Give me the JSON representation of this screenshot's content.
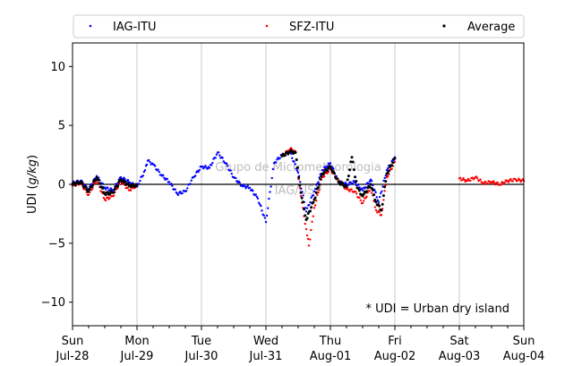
{
  "chart_data": {
    "type": "scatter",
    "ylabel": "UDI (g/kg)",
    "ylabel_plain": "UDI (",
    "ylabel_italic": "g/kg",
    "ylabel_close": ")",
    "ylim": [
      -12,
      12
    ],
    "yticks": [
      -10,
      -5,
      0,
      5,
      10
    ],
    "xlim": [
      "2025-07-28 00:00",
      "2025-08-04 00:00"
    ],
    "xticks": [
      {
        "x": "2025-07-28",
        "day": "Sun",
        "date": "Jul-28"
      },
      {
        "x": "2025-07-29",
        "day": "Mon",
        "date": "Jul-29"
      },
      {
        "x": "2025-07-30",
        "day": "Tue",
        "date": "Jul-30"
      },
      {
        "x": "2025-07-31",
        "day": "Wed",
        "date": "Jul-31"
      },
      {
        "x": "2025-08-01",
        "day": "Thu",
        "date": "Aug-01"
      },
      {
        "x": "2025-08-02",
        "day": "Fri",
        "date": "Aug-02"
      },
      {
        "x": "2025-08-03",
        "day": "Sat",
        "date": "Aug-03"
      },
      {
        "x": "2025-08-04",
        "day": "Sun",
        "date": "Aug-04"
      }
    ],
    "grid": "vertical",
    "legend_position": "top, spanning full width",
    "note": "* UDI = Urban dry island",
    "watermark": [
      "Grupo de Micrometeorologia",
      "IAG/USP"
    ],
    "series": [
      {
        "name": "IAG-ITU",
        "color": "#0000ff",
        "points": [
          [
            "2025-07-28 00:00",
            0.1
          ],
          [
            "2025-07-28 03:00",
            0.3
          ],
          [
            "2025-07-28 06:00",
            -0.4
          ],
          [
            "2025-07-28 09:00",
            0.7
          ],
          [
            "2025-07-28 12:00",
            -0.3
          ],
          [
            "2025-07-28 15:00",
            -0.5
          ],
          [
            "2025-07-28 18:00",
            0.6
          ],
          [
            "2025-07-28 21:00",
            0.2
          ],
          [
            "2025-07-29 00:00",
            -0.2
          ],
          [
            "2025-07-29 03:00",
            1.2
          ],
          [
            "2025-07-29 04:00",
            2.0
          ],
          [
            "2025-07-29 06:00",
            1.7
          ],
          [
            "2025-07-29 09:00",
            0.8
          ],
          [
            "2025-07-29 12:00",
            0.2
          ],
          [
            "2025-07-29 15:00",
            -0.8
          ],
          [
            "2025-07-29 18:00",
            -0.6
          ],
          [
            "2025-07-29 21:00",
            0.6
          ],
          [
            "2025-07-30 00:00",
            1.5
          ],
          [
            "2025-07-30 03:00",
            1.4
          ],
          [
            "2025-07-30 06:00",
            2.7
          ],
          [
            "2025-07-30 09:00",
            1.8
          ],
          [
            "2025-07-30 12:00",
            0.6
          ],
          [
            "2025-07-30 15:00",
            -0.1
          ],
          [
            "2025-07-30 18:00",
            -0.3
          ],
          [
            "2025-07-30 21:00",
            -1.2
          ],
          [
            "2025-07-31 00:00",
            -3.2
          ],
          [
            "2025-07-31 03:00",
            1.8
          ],
          [
            "2025-07-31 06:00",
            2.5
          ],
          [
            "2025-07-31 09:00",
            2.7
          ],
          [
            "2025-07-31 12:00",
            1.0
          ],
          [
            "2025-07-31 15:00",
            -2.3
          ],
          [
            "2025-07-31 18:00",
            -0.6
          ],
          [
            "2025-07-31 21:00",
            1.2
          ],
          [
            "2025-08-01 00:00",
            1.8
          ],
          [
            "2025-08-01 03:00",
            0.2
          ],
          [
            "2025-08-01 06:00",
            0.0
          ],
          [
            "2025-08-01 09:00",
            0.2
          ],
          [
            "2025-08-01 12:00",
            -0.5
          ],
          [
            "2025-08-01 15:00",
            0.4
          ],
          [
            "2025-08-01 18:00",
            -1.5
          ],
          [
            "2025-08-01 21:00",
            1.2
          ],
          [
            "2025-08-02 00:00",
            2.3
          ]
        ]
      },
      {
        "name": "SFZ-ITU",
        "color": "#ff0000",
        "points": [
          [
            "2025-07-28 00:00",
            -0.1
          ],
          [
            "2025-07-28 03:00",
            0.1
          ],
          [
            "2025-07-28 06:00",
            -0.9
          ],
          [
            "2025-07-28 09:00",
            0.4
          ],
          [
            "2025-07-28 12:00",
            -1.3
          ],
          [
            "2025-07-28 15:00",
            -1.0
          ],
          [
            "2025-07-28 18:00",
            0.3
          ],
          [
            "2025-07-28 21:00",
            -0.5
          ],
          [
            "2025-07-29 00:00",
            -0.1
          ],
          [
            "2025-07-31 06:00",
            2.4
          ],
          [
            "2025-07-31 09:00",
            3.0
          ],
          [
            "2025-07-31 11:00",
            2.8
          ],
          [
            "2025-07-31 13:00",
            -1.0
          ],
          [
            "2025-07-31 15:00",
            -3.8
          ],
          [
            "2025-07-31 16:00",
            -5.2
          ],
          [
            "2025-07-31 18:00",
            -2.0
          ],
          [
            "2025-07-31 21:00",
            0.6
          ],
          [
            "2025-08-01 00:00",
            1.3
          ],
          [
            "2025-08-01 03:00",
            0.3
          ],
          [
            "2025-08-01 06:00",
            -0.4
          ],
          [
            "2025-08-01 09:00",
            -0.6
          ],
          [
            "2025-08-01 12:00",
            -1.6
          ],
          [
            "2025-08-01 15:00",
            -0.3
          ],
          [
            "2025-08-01 17:00",
            -2.2
          ],
          [
            "2025-08-01 19:00",
            -2.6
          ],
          [
            "2025-08-01 21:00",
            0.6
          ],
          [
            "2025-08-02 00:00",
            1.9
          ],
          [
            "2025-08-03 00:00",
            0.5
          ],
          [
            "2025-08-03 03:00",
            0.3
          ],
          [
            "2025-08-03 06:00",
            0.6
          ],
          [
            "2025-08-03 09:00",
            0.1
          ],
          [
            "2025-08-03 12:00",
            0.2
          ],
          [
            "2025-08-03 15:00",
            0.0
          ],
          [
            "2025-08-03 18:00",
            0.3
          ],
          [
            "2025-08-03 21:00",
            0.4
          ],
          [
            "2025-08-04 00:00",
            0.3
          ]
        ]
      },
      {
        "name": "Average",
        "color": "#000000",
        "points": [
          [
            "2025-07-28 00:00",
            0.0
          ],
          [
            "2025-07-28 03:00",
            0.2
          ],
          [
            "2025-07-28 06:00",
            -0.6
          ],
          [
            "2025-07-28 09:00",
            0.6
          ],
          [
            "2025-07-28 12:00",
            -0.8
          ],
          [
            "2025-07-28 15:00",
            -0.7
          ],
          [
            "2025-07-28 18:00",
            0.4
          ],
          [
            "2025-07-28 21:00",
            -0.1
          ],
          [
            "2025-07-29 00:00",
            -0.1
          ],
          [
            "2025-07-31 06:00",
            2.4
          ],
          [
            "2025-07-31 09:00",
            2.8
          ],
          [
            "2025-07-31 11:00",
            2.7
          ],
          [
            "2025-07-31 13:00",
            -0.7
          ],
          [
            "2025-07-31 15:00",
            -3.0
          ],
          [
            "2025-07-31 18:00",
            -1.3
          ],
          [
            "2025-07-31 21:00",
            0.9
          ],
          [
            "2025-08-01 00:00",
            1.5
          ],
          [
            "2025-08-01 03:00",
            0.2
          ],
          [
            "2025-08-01 06:00",
            -0.2
          ],
          [
            "2025-08-01 08:00",
            2.3
          ],
          [
            "2025-08-01 10:00",
            -0.3
          ],
          [
            "2025-08-01 12:00",
            -1.0
          ],
          [
            "2025-08-01 15:00",
            0.0
          ],
          [
            "2025-08-01 17:00",
            -1.5
          ],
          [
            "2025-08-01 19:00",
            -2.2
          ],
          [
            "2025-08-01 21:00",
            0.9
          ],
          [
            "2025-08-02 00:00",
            2.2
          ]
        ]
      }
    ]
  }
}
